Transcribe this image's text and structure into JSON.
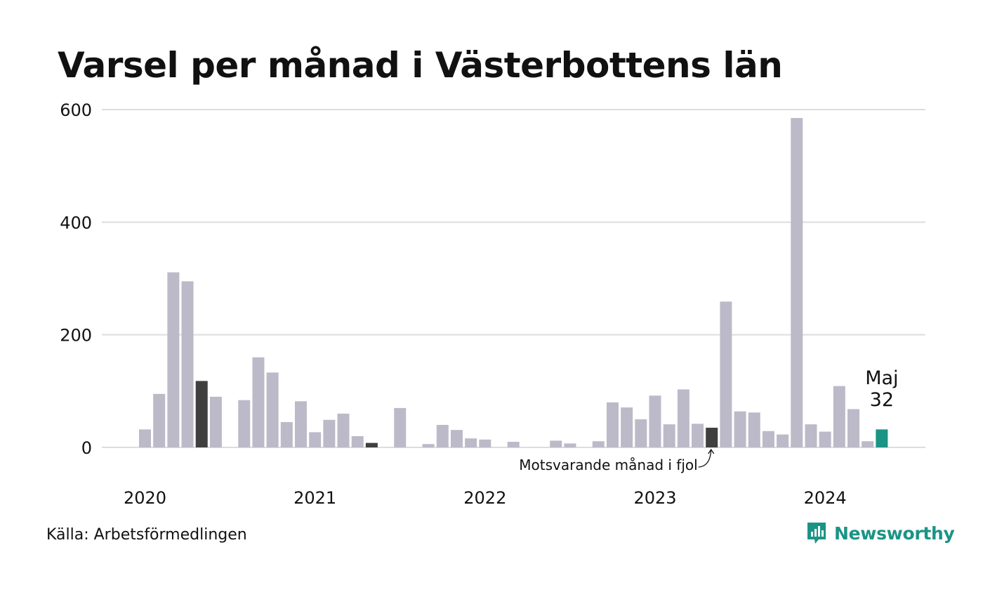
{
  "title": "Varsel per månad i Västerbottens län",
  "source": "Källa: Arbetsförmedlingen",
  "brand": {
    "name": "Newsworthy",
    "icon": "newsworthy-logo-icon",
    "color": "#1a9485"
  },
  "annotations": {
    "highlight_month": "Maj",
    "highlight_value": "32",
    "comparison_label": "Motsvarande månad i fjol"
  },
  "colors": {
    "bar": "#bcbac8",
    "comparison_bar": "#3f3f3f",
    "current_bar": "#1a9485",
    "grid": "#dddddd",
    "text": "#111111"
  },
  "chart_data": {
    "type": "bar",
    "title": "Varsel per månad i Västerbottens län",
    "xlabel": "",
    "ylabel": "",
    "ylim": [
      0,
      600
    ],
    "yticks": [
      0,
      200,
      400,
      600
    ],
    "xtick_labels": [
      "2020",
      "2021",
      "2022",
      "2023",
      "2024"
    ],
    "grid": true,
    "categories": [
      "2020-01",
      "2020-02",
      "2020-03",
      "2020-04",
      "2020-05",
      "2020-06",
      "2020-07",
      "2020-08",
      "2020-09",
      "2020-10",
      "2020-11",
      "2020-12",
      "2021-01",
      "2021-02",
      "2021-03",
      "2021-04",
      "2021-05",
      "2021-06",
      "2021-07",
      "2021-08",
      "2021-09",
      "2021-10",
      "2021-11",
      "2021-12",
      "2022-01",
      "2022-02",
      "2022-03",
      "2022-04",
      "2022-05",
      "2022-06",
      "2022-07",
      "2022-08",
      "2022-09",
      "2022-10",
      "2022-11",
      "2022-12",
      "2023-01",
      "2023-02",
      "2023-03",
      "2023-04",
      "2023-05",
      "2023-06",
      "2023-07",
      "2023-08",
      "2023-09",
      "2023-10",
      "2023-11",
      "2023-12",
      "2024-01",
      "2024-02",
      "2024-03",
      "2024-04",
      "2024-05"
    ],
    "values": [
      32,
      95,
      311,
      295,
      118,
      90,
      0,
      84,
      160,
      133,
      45,
      82,
      27,
      49,
      60,
      20,
      8,
      0,
      70,
      0,
      6,
      40,
      31,
      16,
      14,
      0,
      10,
      0,
      0,
      12,
      7,
      0,
      11,
      80,
      71,
      50,
      92,
      41,
      103,
      42,
      35,
      259,
      64,
      62,
      29,
      23,
      585,
      41,
      28,
      109,
      68,
      11,
      32
    ],
    "comparison_months": [
      "2020-05",
      "2021-05",
      "2023-05"
    ],
    "current_month": "2024-05"
  }
}
